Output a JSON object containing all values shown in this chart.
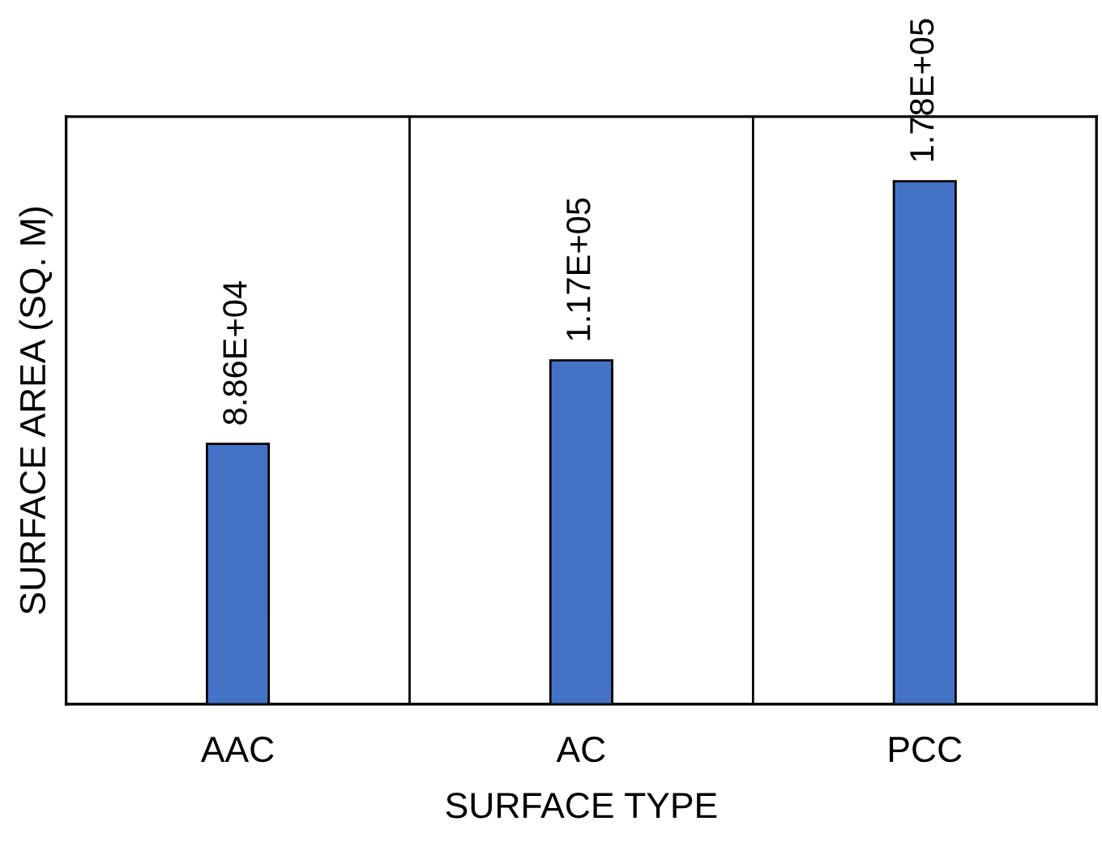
{
  "chart_data": {
    "type": "bar",
    "xlabel": "SURFACE TYPE",
    "ylabel": "SURFACE AREA (SQ. M)",
    "categories": [
      "AAC",
      "AC",
      "PCC"
    ],
    "values": [
      88600,
      117000,
      178000
    ],
    "value_labels": [
      "8.86E+04",
      "1.17E+05",
      "1.78E+05"
    ],
    "color": "#4472c4",
    "ylim": [
      0,
      200000
    ],
    "tick_labels": "x",
    "grid": "x"
  }
}
